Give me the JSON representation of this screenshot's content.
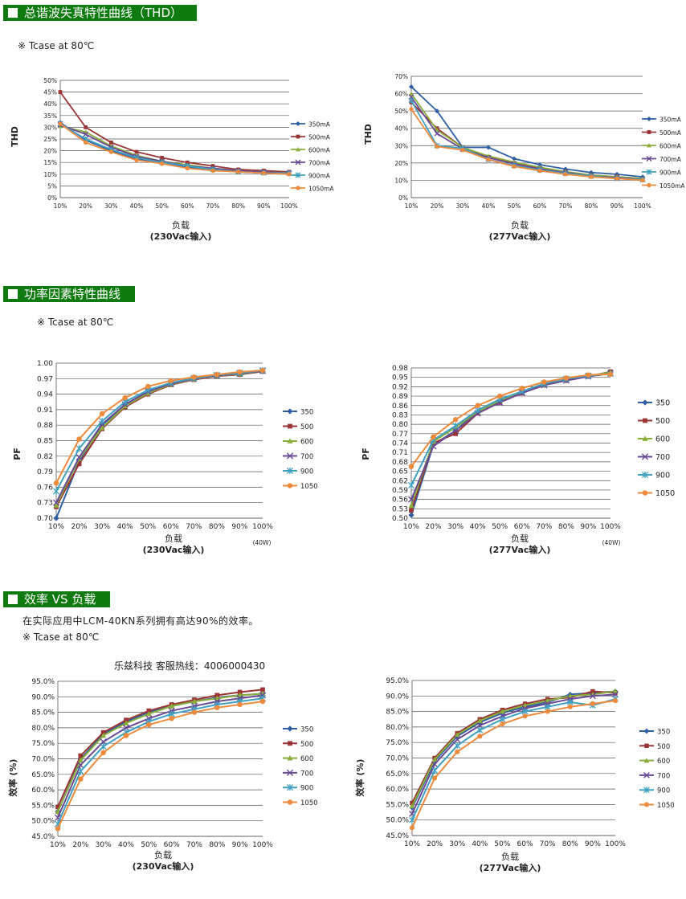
{
  "sections": {
    "thd": {
      "title": "总谐波失真特性曲线（THD）",
      "note": "※ Tcase at 80℃"
    },
    "pf": {
      "title": "功率因素特性曲线",
      "note": "※ Tcase at 80℃"
    },
    "eff": {
      "title": "效率 VS 负载",
      "desc": "在实际应用中LCM-40KN系列拥有高达90%的效率。",
      "note": "※ Tcase at 80℃",
      "hotline": "乐兹科技 客服热线：4006000430"
    }
  },
  "colors": {
    "header_green": "#0f7a0f",
    "s350": "#2e5fa3",
    "s500": "#9b3434",
    "s600": "#8aae3c",
    "s700": "#6a4a94",
    "s900": "#3fa0c0",
    "s1050": "#ee8a3c"
  },
  "chart_data": [
    {
      "id": "thd230",
      "type": "line",
      "ylabel": "THD",
      "xlabel": "负载",
      "xlabel2": "(230Vac输入)",
      "categories": [
        "10%",
        "20%",
        "30%",
        "40%",
        "50%",
        "60%",
        "70%",
        "80%",
        "90%",
        "100%"
      ],
      "ylim": [
        0,
        50
      ],
      "yticks": [
        "0%",
        "5%",
        "10%",
        "15%",
        "20%",
        "25%",
        "30%",
        "35%",
        "40%",
        "45%",
        "50%"
      ],
      "grid": "horizontal",
      "legend": "right",
      "series": [
        {
          "name": "350mA",
          "values": [
            32,
            24.5,
            20,
            16.5,
            14.5,
            13,
            12,
            11,
            10.5,
            10
          ]
        },
        {
          "name": "500mA",
          "values": [
            45,
            30,
            23.5,
            19.5,
            17,
            15,
            13.5,
            12,
            11.5,
            11
          ]
        },
        {
          "name": "600mA",
          "values": [
            30.5,
            28,
            22,
            18,
            15.5,
            14,
            12.5,
            11.5,
            11,
            10.5
          ]
        },
        {
          "name": "700mA",
          "values": [
            31,
            27,
            21.5,
            17.5,
            15.5,
            13.5,
            12.5,
            11.5,
            11,
            10.5
          ]
        },
        {
          "name": "900mA",
          "values": [
            31.5,
            25,
            20.5,
            17,
            15,
            13.5,
            12,
            11,
            10.5,
            10.5
          ]
        },
        {
          "name": "1050mA",
          "values": [
            31.5,
            23.5,
            19.5,
            16,
            14.5,
            12.5,
            11.5,
            11,
            10.5,
            10
          ]
        }
      ]
    },
    {
      "id": "thd277",
      "type": "line",
      "ylabel": "THD",
      "xlabel": "负载",
      "xlabel2": "(277Vac输入)",
      "categories": [
        "10%",
        "20%",
        "30%",
        "40%",
        "50%",
        "60%",
        "70%",
        "80%",
        "90%",
        "100%"
      ],
      "ylim": [
        0,
        70
      ],
      "yticks": [
        "0%",
        "10%",
        "20%",
        "30%",
        "40%",
        "50%",
        "60%",
        "70%"
      ],
      "grid": "horizontal",
      "legend": "right",
      "series": [
        {
          "name": "350mA",
          "values": [
            64,
            50,
            29,
            29,
            22.5,
            19,
            16.5,
            14.5,
            13.5,
            12
          ]
        },
        {
          "name": "500mA",
          "values": [
            55,
            40,
            29,
            23.5,
            20,
            17,
            15,
            13,
            12,
            11
          ]
        },
        {
          "name": "600mA",
          "values": [
            60,
            39,
            29,
            24,
            20.5,
            17.5,
            15,
            13,
            12,
            11
          ]
        },
        {
          "name": "700mA",
          "values": [
            58,
            37,
            28,
            23,
            19.5,
            16.5,
            14.5,
            12.5,
            11.5,
            10.5
          ]
        },
        {
          "name": "900mA",
          "values": [
            56,
            30,
            28.5,
            22,
            18.5,
            16,
            14,
            12.5,
            11,
            10.5
          ]
        },
        {
          "name": "1050mA",
          "values": [
            51,
            29.5,
            27.5,
            22,
            18,
            15.5,
            13.5,
            12,
            11,
            10
          ]
        }
      ]
    },
    {
      "id": "pf230",
      "type": "line",
      "ylabel": "PF",
      "xlabel": "负载",
      "xlabel2": "(230Vac输入)",
      "xnote": "(40W)",
      "categories": [
        "10%",
        "20%",
        "30%",
        "40%",
        "50%",
        "60%",
        "70%",
        "80%",
        "90%",
        "100%"
      ],
      "ylim": [
        0.7,
        1.0
      ],
      "yticks": [
        "0.70",
        "0.73",
        "0.76",
        "0.79",
        "0.82",
        "0.85",
        "0.88",
        "0.91",
        "0.94",
        "0.97",
        "1.00"
      ],
      "grid": "horizontal",
      "legend": "right",
      "series": [
        {
          "name": "350",
          "values": [
            0.7,
            0.81,
            0.88,
            0.92,
            0.945,
            0.96,
            0.97,
            0.975,
            0.978,
            0.984
          ]
        },
        {
          "name": "500",
          "values": [
            0.722,
            0.805,
            0.873,
            0.915,
            0.94,
            0.958,
            0.968,
            0.975,
            0.978,
            0.984
          ]
        },
        {
          "name": "600",
          "values": [
            0.725,
            0.815,
            0.875,
            0.917,
            0.942,
            0.959,
            0.969,
            0.976,
            0.979,
            0.985
          ]
        },
        {
          "name": "700",
          "values": [
            0.73,
            0.818,
            0.882,
            0.92,
            0.945,
            0.96,
            0.97,
            0.976,
            0.98,
            0.985
          ]
        },
        {
          "name": "900",
          "values": [
            0.752,
            0.835,
            0.888,
            0.925,
            0.948,
            0.962,
            0.971,
            0.977,
            0.981,
            0.986
          ]
        },
        {
          "name": "1050",
          "values": [
            0.768,
            0.853,
            0.902,
            0.933,
            0.955,
            0.966,
            0.973,
            0.978,
            0.983,
            0.986
          ]
        }
      ]
    },
    {
      "id": "pf277",
      "type": "line",
      "ylabel": "PF",
      "xlabel": "负载",
      "xlabel2": "(277Vac输入)",
      "xnote": "(40W)",
      "categories": [
        "10%",
        "20%",
        "30%",
        "40%",
        "50%",
        "60%",
        "70%",
        "80%",
        "90%",
        "100%"
      ],
      "ylim": [
        0.5,
        0.98
      ],
      "yticks": [
        "0.50",
        "0.53",
        "0.56",
        "0.59",
        "0.62",
        "0.65",
        "0.68",
        "0.71",
        "0.74",
        "0.77",
        "0.80",
        "0.83",
        "0.86",
        "0.89",
        "0.92",
        "0.95",
        "0.98"
      ],
      "grid": "horizontal",
      "legend": "right",
      "series": [
        {
          "name": "350",
          "values": [
            0.51,
            0.735,
            0.78,
            0.84,
            0.87,
            0.9,
            0.925,
            0.94,
            0.953,
            0.965
          ]
        },
        {
          "name": "500",
          "values": [
            0.525,
            0.74,
            0.77,
            0.835,
            0.87,
            0.9,
            0.925,
            0.94,
            0.953,
            0.968
          ]
        },
        {
          "name": "600",
          "values": [
            0.54,
            0.745,
            0.79,
            0.84,
            0.875,
            0.905,
            0.925,
            0.945,
            0.955,
            0.966
          ]
        },
        {
          "name": "700",
          "values": [
            0.56,
            0.73,
            0.78,
            0.835,
            0.87,
            0.9,
            0.925,
            0.94,
            0.953,
            0.962
          ]
        },
        {
          "name": "900",
          "values": [
            0.605,
            0.75,
            0.795,
            0.845,
            0.88,
            0.905,
            0.93,
            0.945,
            0.955,
            0.962
          ]
        },
        {
          "name": "1050",
          "values": [
            0.665,
            0.76,
            0.815,
            0.86,
            0.89,
            0.915,
            0.935,
            0.948,
            0.958,
            0.96
          ]
        }
      ]
    },
    {
      "id": "eff230",
      "type": "line",
      "ylabel": "效率 (%)",
      "xlabel": "负载",
      "xlabel2": "(230Vac输入)",
      "categories": [
        "10%",
        "20%",
        "30%",
        "40%",
        "50%",
        "60%",
        "70%",
        "80%",
        "90%",
        "100%"
      ],
      "ylim": [
        45,
        95
      ],
      "yticks": [
        "45.0%",
        "50.0%",
        "55.0%",
        "60.0%",
        "65.0%",
        "70.0%",
        "75.0%",
        "80.0%",
        "85.0%",
        "90.0%",
        "95.0%"
      ],
      "grid": "horizontal",
      "legend": "right",
      "series": [
        {
          "name": "350",
          "values": [
            53,
            70,
            78,
            82,
            85,
            87,
            88.5,
            89.8,
            90.5,
            91
          ]
        },
        {
          "name": "500",
          "values": [
            54.5,
            71,
            78.5,
            82.5,
            85.5,
            87.5,
            89,
            90.5,
            91.5,
            92.3
          ]
        },
        {
          "name": "600",
          "values": [
            53,
            69.5,
            77.5,
            81.5,
            84.5,
            87,
            88.5,
            89.5,
            90.5,
            91
          ]
        },
        {
          "name": "700",
          "values": [
            51,
            68,
            75.5,
            80,
            83,
            85.5,
            87,
            88.5,
            89.5,
            90.5
          ]
        },
        {
          "name": "900",
          "values": [
            49,
            66,
            74,
            78.5,
            82,
            84.5,
            86,
            87.5,
            88.5,
            89.5
          ]
        },
        {
          "name": "1050",
          "values": [
            47.5,
            63.5,
            72,
            77.5,
            81,
            83,
            85,
            86.5,
            87.5,
            88.5
          ]
        }
      ]
    },
    {
      "id": "eff277",
      "type": "line",
      "ylabel": "效率 (%)",
      "xlabel": "负载",
      "xlabel2": "(277Vac输入)",
      "categories": [
        "10%",
        "20%",
        "30%",
        "40%",
        "50%",
        "60%",
        "70%",
        "80%",
        "90%",
        "100%"
      ],
      "ylim": [
        45,
        95
      ],
      "yticks": [
        "45.0%",
        "50.0%",
        "55.0%",
        "60.0%",
        "65.0%",
        "70.0%",
        "75.0%",
        "80.0%",
        "85.0%",
        "90.0%",
        "95.0%"
      ],
      "grid": "horizontal",
      "legend": "right",
      "series": [
        {
          "name": "350",
          "values": [
            54,
            69,
            77,
            81.5,
            84.5,
            86.5,
            88,
            90.5,
            91,
            91.5
          ]
        },
        {
          "name": "500",
          "values": [
            55.5,
            70,
            78,
            82.5,
            85.5,
            87.5,
            89,
            89.5,
            91.5,
            91
          ]
        },
        {
          "name": "600",
          "values": [
            54.5,
            69.5,
            77.5,
            82,
            85,
            87,
            88.5,
            90,
            90.5,
            91.5
          ]
        },
        {
          "name": "700",
          "values": [
            52,
            68,
            76,
            80.5,
            83.5,
            86,
            87.5,
            89,
            90,
            90.5
          ]
        },
        {
          "name": "900",
          "values": [
            50,
            66,
            74,
            79,
            82.5,
            85,
            86.5,
            88,
            87,
            89
          ]
        },
        {
          "name": "1050",
          "values": [
            47.5,
            63.5,
            72,
            77,
            81,
            83.5,
            85,
            86.5,
            87.5,
            88.5
          ]
        }
      ]
    }
  ]
}
